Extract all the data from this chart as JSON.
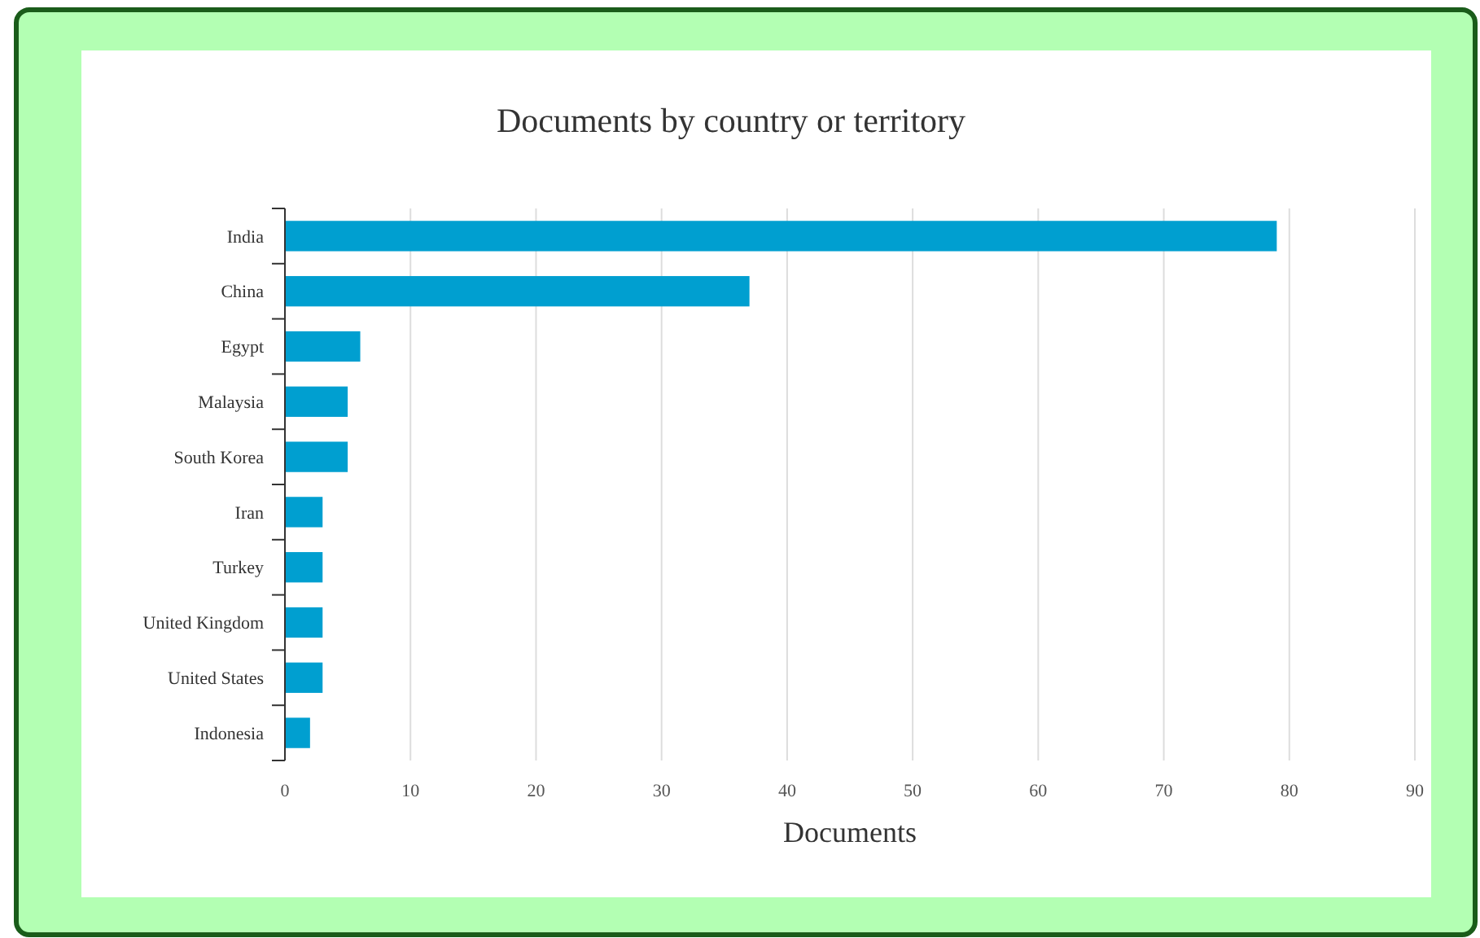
{
  "chart_data": {
    "type": "bar",
    "orientation": "horizontal",
    "title": "Documents by country or territory",
    "xlabel": "Documents",
    "categories": [
      "India",
      "China",
      "Egypt",
      "Malaysia",
      "South Korea",
      "Iran",
      "Turkey",
      "United Kingdom",
      "United States",
      "Indonesia"
    ],
    "values": [
      79,
      37,
      6,
      5,
      5,
      3,
      3,
      3,
      3,
      2
    ],
    "color": "#009fd0",
    "xlim": [
      0,
      90
    ],
    "xticks": [
      0,
      10,
      20,
      30,
      40,
      50,
      60,
      70,
      80,
      90
    ],
    "grid": "x"
  }
}
